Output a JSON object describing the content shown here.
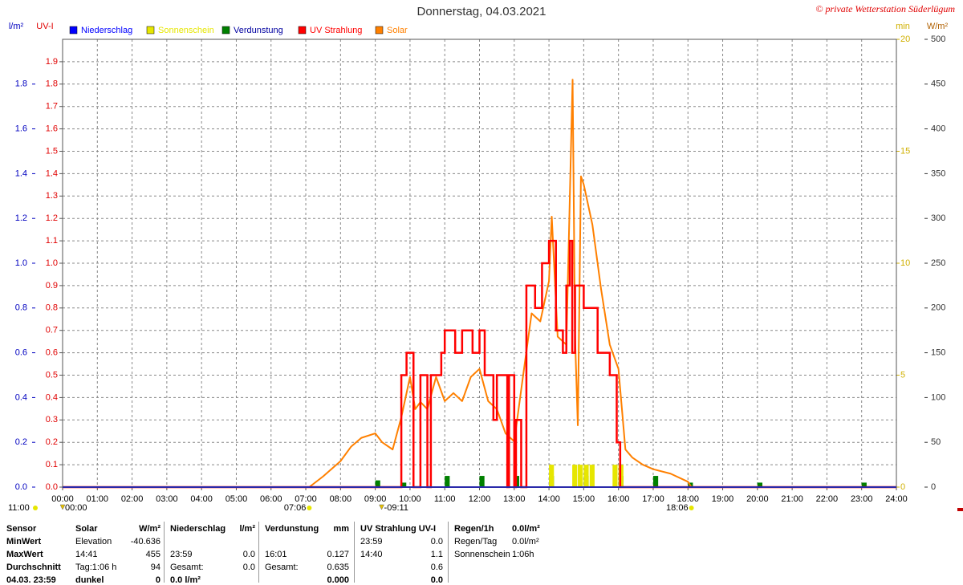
{
  "chart_data": {
    "type": "line",
    "title": "Donnerstag, 04.03.2021",
    "copyright": "© private Wetterstation Süderlügum",
    "ylabel": "l/m²",
    "uvlabel": "UV-I",
    "y3label": "min",
    "y2label": "W/m²",
    "xlim": [
      0,
      24
    ],
    "xticks": [
      {
        "value": 0,
        "label": "00:00"
      },
      {
        "value": 1,
        "label": "01:00"
      },
      {
        "value": 2,
        "label": "02:00"
      },
      {
        "value": 3,
        "label": "03:00"
      },
      {
        "value": 4,
        "label": "04:00"
      },
      {
        "value": 5,
        "label": "05:00"
      },
      {
        "value": 6,
        "label": "06:00"
      },
      {
        "value": 7,
        "label": "07:00"
      },
      {
        "value": 8,
        "label": "08:00"
      },
      {
        "value": 9,
        "label": "09:00"
      },
      {
        "value": 10,
        "label": "10:00"
      },
      {
        "value": 11,
        "label": "11:00"
      },
      {
        "value": 12,
        "label": "12:00"
      },
      {
        "value": 13,
        "label": "13:00"
      },
      {
        "value": 14,
        "label": "14:00"
      },
      {
        "value": 15,
        "label": "15:00"
      },
      {
        "value": 16,
        "label": "16:00"
      },
      {
        "value": 17,
        "label": "17:00"
      },
      {
        "value": 18,
        "label": "18:00"
      },
      {
        "value": 19,
        "label": "19:00"
      },
      {
        "value": 20,
        "label": "20:00"
      },
      {
        "value": 21,
        "label": "21:00"
      },
      {
        "value": 22,
        "label": "22:00"
      },
      {
        "value": 23,
        "label": "23:00"
      },
      {
        "value": 24,
        "label": "24:00"
      }
    ],
    "ylim": [
      0,
      2
    ],
    "yticks": [
      {
        "value": 0,
        "label": "0.0"
      },
      0.2,
      0.4,
      0.6,
      0.8,
      {
        "value": 1,
        "label": "1.0"
      },
      1.2,
      1.4,
      1.6,
      1.8
    ],
    "uvlim": [
      0,
      2
    ],
    "uvticks": [
      {
        "value": 0,
        "label": "0.0"
      },
      0.1,
      0.2,
      0.3,
      0.4,
      0.5,
      0.6,
      0.7,
      0.8,
      0.9,
      {
        "value": 1,
        "label": "1.0"
      },
      1.1,
      1.2,
      1.3,
      1.4,
      1.5,
      1.6,
      1.7,
      1.8,
      1.9
    ],
    "y3lim": [
      0,
      20
    ],
    "y3ticks": [
      0,
      5,
      10,
      15,
      20
    ],
    "y2lim": [
      0,
      500
    ],
    "y2ticks": [
      0,
      50,
      100,
      150,
      200,
      250,
      300,
      350,
      400,
      450,
      500
    ],
    "grid": true,
    "series": [
      {
        "name": "Niederschlag",
        "color": "#0000ff",
        "type": "line",
        "axis": "y",
        "x": [
          0,
          24
        ],
        "values": [
          0,
          0
        ]
      },
      {
        "name": "Sonnenschein",
        "color": "#e6e600",
        "type": "bar",
        "axis": "y3",
        "x": [
          14.0,
          14.67,
          14.83,
          15.0,
          15.17,
          15.83,
          16.0
        ],
        "values": [
          1,
          1,
          1,
          1,
          1,
          1,
          1
        ]
      },
      {
        "name": "Verdunstung",
        "color": "#008000",
        "type": "bar",
        "axis": "y",
        "x": [
          9.0,
          9.75,
          11.0,
          12.0,
          13.0,
          14.0,
          15.0,
          16.0,
          17.0,
          18.0,
          20.0,
          23.0
        ],
        "values": [
          0.03,
          0.02,
          0.05,
          0.05,
          0.05,
          0.05,
          0.05,
          0.05,
          0.05,
          0.02,
          0.02,
          0.02
        ]
      },
      {
        "name": "UV Strahlung",
        "color": "#ff0000",
        "type": "step",
        "axis": "uv",
        "x": [
          0,
          9.75,
          9.9,
          10.1,
          10.3,
          10.5,
          10.6,
          10.9,
          11.0,
          11.3,
          11.5,
          11.8,
          12.0,
          12.15,
          12.4,
          12.5,
          12.8,
          12.85,
          13.0,
          13.05,
          13.2,
          13.35,
          13.6,
          13.8,
          14.0,
          14.2,
          14.4,
          14.5,
          14.6,
          14.67,
          14.75,
          15.0,
          15.4,
          15.75,
          15.95,
          16.05,
          24
        ],
        "values": [
          0,
          0.5,
          0.6,
          0,
          0.5,
          0,
          0.5,
          0.6,
          0.7,
          0.6,
          0.7,
          0.6,
          0.7,
          0.5,
          0.3,
          0.5,
          0,
          0.5,
          0,
          0.3,
          0,
          0.9,
          0.8,
          1.0,
          1.1,
          0.7,
          0.6,
          0.9,
          1.1,
          0.6,
          0.9,
          0.8,
          0.6,
          0.5,
          0.2,
          0,
          0
        ]
      },
      {
        "name": "Solar",
        "color": "#ff8000",
        "type": "line",
        "axis": "y2",
        "x": [
          7.1,
          7.5,
          8.0,
          8.3,
          8.6,
          9.0,
          9.2,
          9.5,
          9.75,
          10.0,
          10.15,
          10.3,
          10.5,
          10.75,
          11.0,
          11.25,
          11.5,
          11.75,
          12.0,
          12.25,
          12.5,
          12.75,
          13.0,
          13.25,
          13.5,
          13.75,
          14.0,
          14.08,
          14.25,
          14.5,
          14.68,
          14.75,
          14.83,
          14.92,
          15.0,
          15.25,
          15.5,
          15.75,
          16.0,
          16.2,
          16.4,
          16.7,
          17.0,
          17.5,
          18.0,
          18.1
        ],
        "values": [
          0,
          12,
          29,
          45,
          55,
          60,
          50,
          42,
          78,
          123,
          87,
          95,
          87,
          123,
          96,
          105,
          96,
          123,
          132,
          96,
          87,
          60,
          51,
          123,
          194,
          185,
          230,
          302,
          168,
          159,
          455,
          168,
          69,
          347,
          338,
          293,
          221,
          159,
          132,
          42,
          33,
          25,
          20,
          15,
          6,
          0
        ]
      }
    ],
    "moon_label": "11:00",
    "markers": [
      {
        "value": 0,
        "label": "00:00"
      },
      {
        "value": 7.1,
        "label": "07:06"
      },
      {
        "value": 9.183,
        "label": "-09:11"
      },
      {
        "value": 18.1,
        "label": "18:06"
      }
    ]
  },
  "stats_table": {
    "rows": [
      [
        "Sensor",
        "Solar",
        "W/m²",
        "Niederschlag",
        "l/m²",
        "Verdunstung",
        "mm",
        "UV Strahlung UV-I",
        null,
        "Regen/1h",
        "0.0l/m²"
      ],
      [
        "MinWert",
        "Elevation",
        "-40.636",
        null,
        null,
        null,
        null,
        "23:59",
        "0.0",
        "Regen/Tag",
        "0.0l/m²"
      ],
      [
        "MaxWert",
        "14:41",
        "455",
        "23:59",
        "0.0",
        "16:01",
        "0.127",
        "14:40",
        "1.1",
        "Sonnenschein",
        "1:06h"
      ],
      [
        "Durchschnitt",
        "Tag:1:06 h",
        "94",
        "Gesamt:",
        "0.0",
        "Gesamt:",
        "0.635",
        null,
        "0.6",
        null,
        null
      ],
      [
        "04.03. 23:59",
        "dunkel",
        "0",
        "0.0 l/m²",
        null,
        null,
        "0.000",
        null,
        "0.0",
        null,
        null
      ]
    ]
  }
}
